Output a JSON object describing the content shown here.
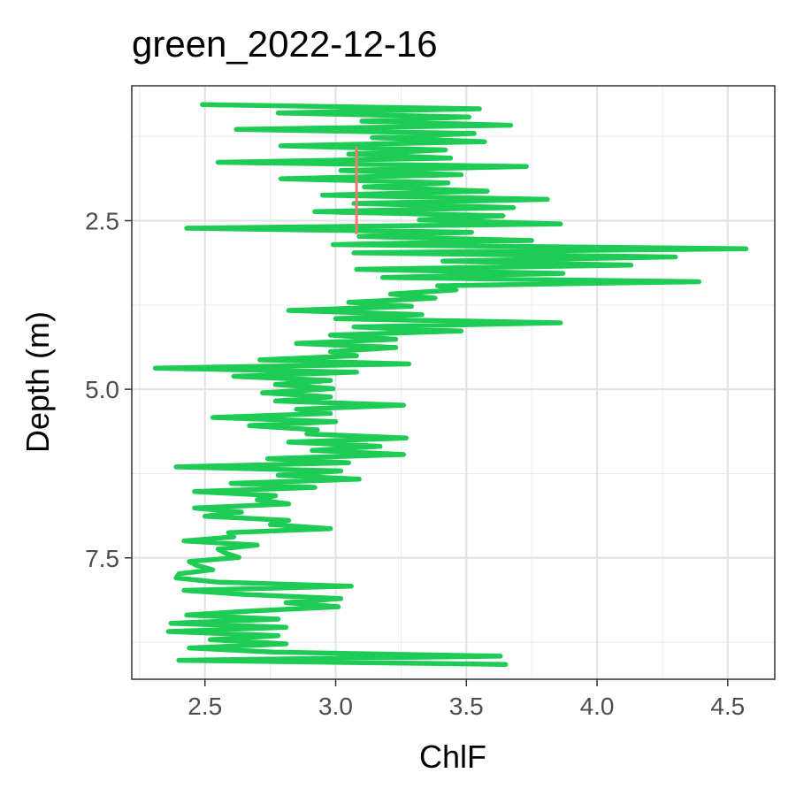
{
  "chart_data": {
    "type": "line",
    "title": "green_2022-12-16",
    "xlabel": "ChlF",
    "ylabel": "Depth (m)",
    "xlim": [
      2.22,
      4.68
    ],
    "ylim": [
      9.3,
      0.5
    ],
    "y_reversed": true,
    "grid": true,
    "legend": "none",
    "xticks": [
      2.5,
      3.0,
      3.5,
      4.0,
      4.5
    ],
    "xtick_labels": [
      "2.5",
      "3.0",
      "3.5",
      "4.0",
      "4.5"
    ],
    "yticks": [
      2.5,
      5.0,
      7.5
    ],
    "ytick_labels": [
      "2.5",
      "5.0",
      "7.5"
    ],
    "series": [
      {
        "color": "#1DCB55",
        "x": [
          2.49,
          3.55,
          2.78,
          3.51,
          3.1,
          3.67,
          2.62,
          3.53,
          3.14,
          3.57,
          2.79,
          3.42,
          3.05,
          3.44,
          2.55,
          3.73,
          3.02,
          3.48,
          2.79,
          3.43,
          3.11,
          3.58,
          2.95,
          3.81,
          3.07,
          3.68,
          2.92,
          3.64,
          3.32,
          3.86,
          2.43,
          3.52,
          3.09,
          3.75,
          2.99,
          4.57,
          3.07,
          4.3,
          3.41,
          4.13,
          3.08,
          3.87,
          3.18,
          4.39,
          3.39,
          3.46,
          3.21,
          3.38,
          3.05,
          3.29,
          2.82,
          3.33,
          3.0,
          3.86,
          3.07,
          3.48,
          2.98,
          3.23,
          2.85,
          3.23,
          2.98,
          3.08,
          2.71,
          3.28,
          2.31,
          3.08,
          2.61,
          2.98,
          2.77,
          2.99,
          2.72,
          2.98,
          2.77,
          3.26,
          2.85,
          2.98,
          2.53,
          3.0,
          2.67,
          2.93,
          2.89,
          3.27,
          2.82,
          3.17,
          2.91,
          3.26,
          2.74,
          3.05,
          2.39,
          3.02,
          2.78,
          3.09,
          2.6,
          2.92,
          2.46,
          2.77,
          2.7,
          2.82,
          2.46,
          2.64,
          2.5,
          2.82,
          2.75,
          2.98,
          2.59,
          2.61,
          2.42,
          2.7,
          2.55,
          2.58,
          2.63,
          2.44,
          2.47,
          2.53,
          2.4,
          2.39,
          2.55,
          3.06,
          2.42,
          2.65,
          3.02,
          2.81,
          3.01,
          2.68,
          2.43,
          2.78,
          2.37,
          2.81,
          2.36,
          2.78,
          2.52,
          2.81,
          2.44,
          2.76,
          3.63,
          2.4,
          3.65
        ]
      },
      {
        "color": "#F8766D",
        "x": [
          3.08,
          3.08
        ],
        "y": [
          1.4,
          2.7
        ]
      }
    ]
  }
}
